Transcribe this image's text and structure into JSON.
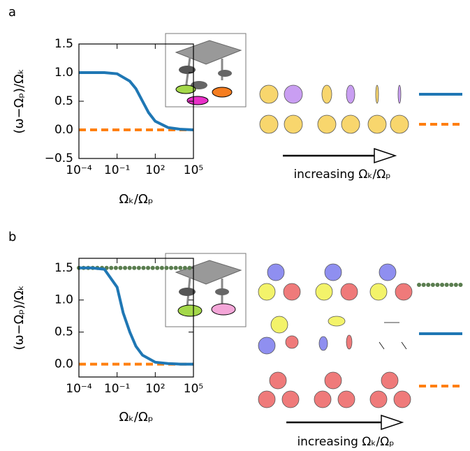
{
  "chart_data": [
    {
      "type": "line",
      "label": "a",
      "ylabel": "(ω−Ωₚ)/Ωₖ",
      "xlabel": "Ωₖ/Ωₚ",
      "annotation": "increasing Ωₖ/Ωₚ",
      "xscale": "log",
      "x": [
        0.0001,
        0.001,
        0.01,
        0.1,
        1,
        3,
        10,
        30,
        100,
        1000,
        10000,
        100000
      ],
      "xlim": [
        0.0001,
        100000
      ],
      "xticks": [
        {
          "value": 0.0001,
          "label": "10⁻⁴"
        },
        {
          "value": 0.1,
          "label": "10⁻¹"
        },
        {
          "value": 100,
          "label": "10²"
        },
        {
          "value": 100000,
          "label": "10⁵"
        }
      ],
      "ylim": [
        -0.5,
        1.5
      ],
      "yticks": [
        {
          "value": -0.5,
          "label": "−0.5"
        },
        {
          "value": 0,
          "label": "0.0"
        },
        {
          "value": 0.5,
          "label": "0.5"
        },
        {
          "value": 1,
          "label": "1.0"
        },
        {
          "value": 1.5,
          "label": "1.5"
        }
      ],
      "series": [
        {
          "color": "#ff7f0e",
          "style": "dashed",
          "values": [
            0,
            0,
            0,
            0,
            0,
            0,
            0,
            0,
            0,
            0,
            0,
            0
          ]
        },
        {
          "color": "#1f77b4",
          "style": "solid",
          "values": [
            1,
            1,
            1,
            0.98,
            0.85,
            0.72,
            0.5,
            0.3,
            0.15,
            0.04,
            0.01,
            0
          ]
        }
      ]
    },
    {
      "type": "line",
      "label": "b",
      "ylabel": "(ω−Ωₚ)/Ωₖ",
      "xlabel": "Ωₖ/Ωₚ",
      "annotation": "increasing Ωₖ/Ωₚ",
      "xscale": "log",
      "x": [
        0.0001,
        0.001,
        0.01,
        0.1,
        0.3,
        1,
        3,
        10,
        100,
        1000,
        10000,
        100000
      ],
      "xlim": [
        0.0001,
        100000
      ],
      "xticks": [
        {
          "value": 0.0001,
          "label": "10⁻⁴"
        },
        {
          "value": 0.1,
          "label": "10⁻¹"
        },
        {
          "value": 100,
          "label": "10²"
        },
        {
          "value": 100000,
          "label": "10⁵"
        }
      ],
      "ylim": [
        -0.2,
        1.65
      ],
      "yticks": [
        {
          "value": 0,
          "label": "0.0"
        },
        {
          "value": 0.5,
          "label": "0.5"
        },
        {
          "value": 1,
          "label": "1.0"
        },
        {
          "value": 1.5,
          "label": "1.5"
        }
      ],
      "series": [
        {
          "color": "#5a7d4f",
          "style": "dotted",
          "values": [
            1.5,
            1.5,
            1.5,
            1.5,
            1.5,
            1.5,
            1.5,
            1.5,
            1.5,
            1.5,
            1.5,
            1.5
          ]
        },
        {
          "color": "#ff7f0e",
          "style": "dashed",
          "values": [
            0,
            0,
            0,
            0,
            0,
            0,
            0,
            0,
            0,
            0,
            0,
            0
          ]
        },
        {
          "color": "#1f77b4",
          "style": "solid",
          "values": [
            1.5,
            1.5,
            1.48,
            1.2,
            0.8,
            0.5,
            0.28,
            0.14,
            0.03,
            0.01,
            0,
            0
          ]
        }
      ]
    }
  ]
}
